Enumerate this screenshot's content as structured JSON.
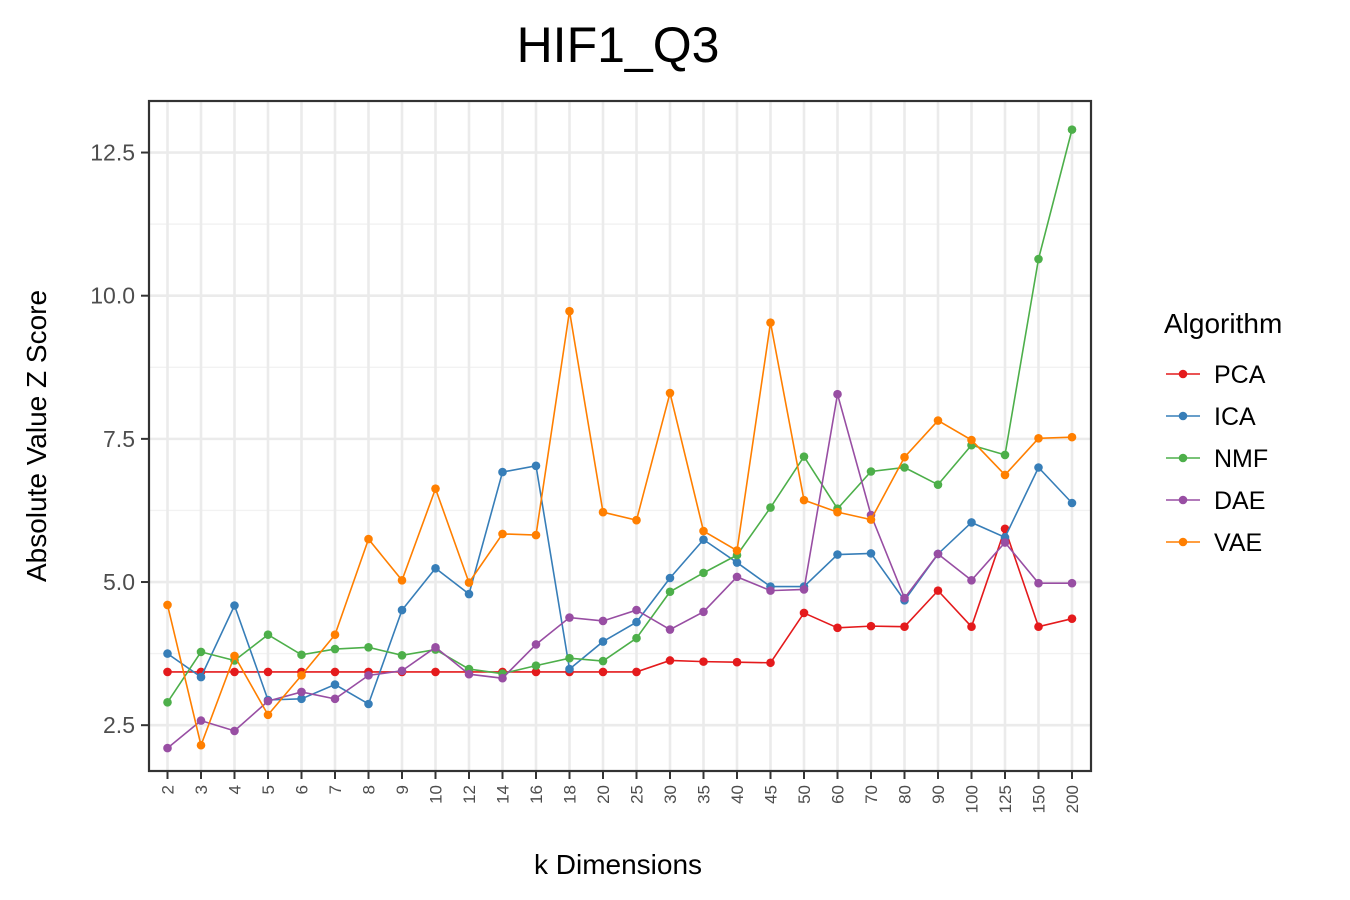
{
  "chart_data": {
    "type": "line",
    "title": "HIF1_Q3",
    "xlabel": "k Dimensions",
    "ylabel": "Absolute Value Z Score",
    "categories": [
      "2",
      "3",
      "4",
      "5",
      "6",
      "7",
      "8",
      "9",
      "10",
      "12",
      "14",
      "16",
      "18",
      "20",
      "25",
      "30",
      "35",
      "40",
      "45",
      "50",
      "60",
      "70",
      "80",
      "90",
      "100",
      "125",
      "150",
      "200"
    ],
    "ylim": [
      1.7,
      13.4
    ],
    "yticks": [
      2.5,
      5.0,
      7.5,
      10.0,
      12.5
    ],
    "ytick_labels": [
      "2.5",
      "5.0",
      "7.5",
      "10.0",
      "12.5"
    ],
    "grid": true,
    "legend": {
      "title": "Algorithm",
      "position": "right"
    },
    "series": [
      {
        "name": "PCA",
        "color": "#e41a1c",
        "values": [
          3.43,
          3.43,
          3.43,
          3.43,
          3.43,
          3.43,
          3.43,
          3.43,
          3.43,
          3.43,
          3.43,
          3.43,
          3.43,
          3.43,
          3.43,
          3.63,
          3.61,
          3.6,
          3.59,
          4.46,
          4.2,
          4.23,
          4.22,
          4.85,
          4.22,
          5.93,
          4.22,
          4.36
        ]
      },
      {
        "name": "ICA",
        "color": "#377eb8",
        "values": [
          3.75,
          3.34,
          4.59,
          2.94,
          2.96,
          3.21,
          2.87,
          4.51,
          5.24,
          4.79,
          6.92,
          7.03,
          3.48,
          3.96,
          4.3,
          5.07,
          5.74,
          5.34,
          4.92,
          4.92,
          5.48,
          5.5,
          4.68,
          5.49,
          6.04,
          5.78,
          7.0,
          6.38
        ]
      },
      {
        "name": "NMF",
        "color": "#4daf4a",
        "values": [
          2.9,
          3.78,
          3.63,
          4.08,
          3.73,
          3.83,
          3.86,
          3.72,
          3.82,
          3.48,
          3.4,
          3.54,
          3.67,
          3.62,
          4.02,
          4.83,
          5.16,
          5.47,
          6.3,
          7.19,
          6.28,
          6.93,
          7.0,
          6.7,
          7.39,
          7.22,
          10.64,
          12.9
        ]
      },
      {
        "name": "DAE",
        "color": "#984ea3",
        "values": [
          2.1,
          2.58,
          2.4,
          2.92,
          3.08,
          2.96,
          3.37,
          3.45,
          3.86,
          3.39,
          3.32,
          3.91,
          4.38,
          4.32,
          4.51,
          4.17,
          4.48,
          5.09,
          4.85,
          4.87,
          8.28,
          6.17,
          4.72,
          5.49,
          5.03,
          5.69,
          4.98,
          4.98
        ]
      },
      {
        "name": "VAE",
        "color": "#ff7f00",
        "values": [
          4.6,
          2.15,
          3.71,
          2.68,
          3.37,
          4.08,
          5.75,
          5.03,
          6.63,
          4.99,
          5.84,
          5.82,
          9.73,
          6.22,
          6.08,
          8.3,
          5.89,
          5.55,
          9.53,
          6.43,
          6.22,
          6.09,
          7.18,
          7.82,
          7.48,
          6.87,
          7.51,
          7.53
        ]
      }
    ]
  }
}
